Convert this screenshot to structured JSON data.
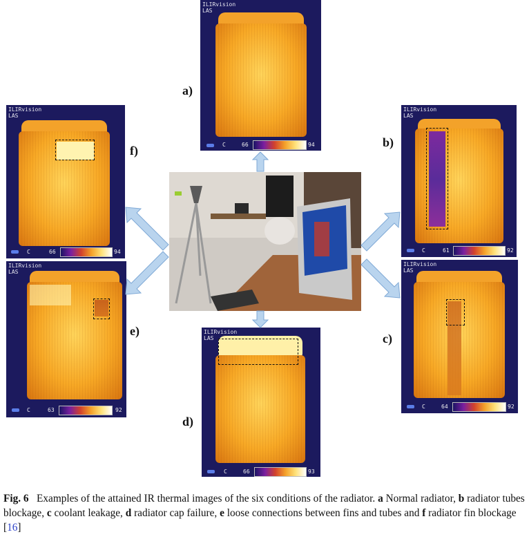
{
  "panels": {
    "a": {
      "label": "a)",
      "hdr1": "ILIRvision",
      "hdr2": "LAS",
      "unit": "C",
      "min": "66",
      "max": "94"
    },
    "b": {
      "label": "b)",
      "hdr1": "ILIRvision",
      "hdr2": "LAS",
      "unit": "C",
      "min": "61",
      "max": "92"
    },
    "c": {
      "label": "c)",
      "hdr1": "ILIRvision",
      "hdr2": "LAS",
      "unit": "C",
      "min": "64",
      "max": "92"
    },
    "d": {
      "label": "d)",
      "hdr1": "ILIRvision",
      "hdr2": "LAS",
      "unit": "C",
      "min": "66",
      "max": "93"
    },
    "e": {
      "label": "e)",
      "hdr1": "ILIRvision",
      "hdr2": "LAS",
      "unit": "C",
      "min": "63",
      "max": "92"
    },
    "f": {
      "label": "f)",
      "hdr1": "ILIRvision",
      "hdr2": "LAS",
      "unit": "C",
      "min": "66",
      "max": "94"
    }
  },
  "caption": {
    "fig_label": "Fig. 6",
    "intro": "Examples of the attained IR thermal images of the six conditions of the radiator.",
    "a_letter": "a",
    "a_text": "Normal radiator,",
    "b_letter": "b",
    "b_text": "radiator tubes blockage,",
    "c_letter": "c",
    "c_text": "coolant leakage,",
    "d_letter": "d",
    "d_text": "radiator cap failure,",
    "e_letter": "e",
    "e_text": "loose connections between fins and tubes and",
    "f_letter": "f",
    "f_text": "radiator fin blockage",
    "ref_open": "[",
    "ref": "16",
    "ref_close": "]"
  },
  "colors": {
    "panel_bg": "#1c1a5e",
    "arrow": "#b9d4ee",
    "arrow_stroke": "#7fa9d6",
    "reference_link": "#2a3fc8"
  }
}
